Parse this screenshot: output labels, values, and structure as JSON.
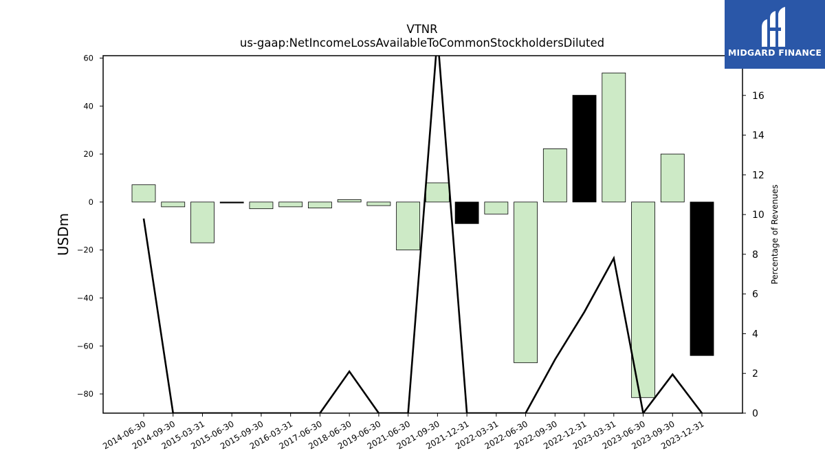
{
  "logo": {
    "text": "MIDGARD FINANCE",
    "icon": "mf-monogram-icon"
  },
  "chart_data": {
    "type": "bar",
    "title": "VTNR",
    "subtitle": "us-gaap:NetIncomeLossAvailableToCommonStockholdersDiluted",
    "ylabel": "USDm",
    "y2label": "Percentage of Revenues",
    "ylim": [
      -88,
      61
    ],
    "y2lim": [
      0,
      18
    ],
    "yticks": [
      60,
      40,
      20,
      0,
      -20,
      -40,
      -60,
      -80
    ],
    "y2ticks": [
      0,
      2,
      4,
      6,
      8,
      10,
      12,
      14,
      16
    ],
    "grid": false,
    "categories": [
      "2014-06-30",
      "2014-09-30",
      "2015-03-31",
      "2015-06-30",
      "2015-09-30",
      "2016-03-31",
      "2017-06-30",
      "2018-06-30",
      "2019-06-30",
      "2021-06-30",
      "2021-09-30",
      "2021-12-31",
      "2022-03-31",
      "2022-06-30",
      "2022-09-30",
      "2022-12-31",
      "2023-03-31",
      "2023-06-30",
      "2023-09-30",
      "2023-12-31"
    ],
    "series": [
      {
        "kind": "bar",
        "values": [
          7.2,
          -2.0,
          -17.0,
          -0.4,
          -2.8,
          -2.0,
          -2.5,
          1.0,
          -1.5,
          -20.0,
          8.0,
          -9.0,
          -5.0,
          -67.0,
          22.2,
          44.5,
          53.8,
          -81.5,
          20.0,
          -64.0
        ],
        "colors": [
          "#cdeac6",
          "#cdeac6",
          "#cdeac6",
          "#000000",
          "#cdeac6",
          "#cdeac6",
          "#cdeac6",
          "#cdeac6",
          "#cdeac6",
          "#cdeac6",
          "#cdeac6",
          "#000000",
          "#cdeac6",
          "#cdeac6",
          "#cdeac6",
          "#000000",
          "#cdeac6",
          "#cdeac6",
          "#cdeac6",
          "#000000"
        ]
      },
      {
        "kind": "line",
        "axis": "right",
        "color": "#000000",
        "values": [
          9.8,
          0,
          0,
          0,
          0,
          0,
          0,
          2.1,
          0,
          0,
          19,
          0,
          0,
          0,
          2.7,
          5.1,
          7.8,
          0,
          1.95,
          0
        ]
      }
    ]
  }
}
